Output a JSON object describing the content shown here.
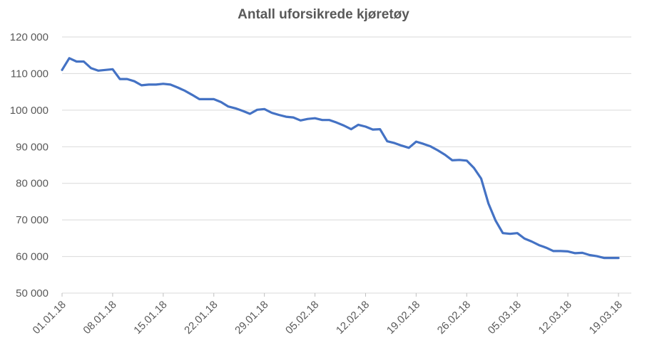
{
  "chart_data": {
    "type": "line",
    "title": "Antall uforsikrede kjøretøy",
    "xlabel": "",
    "ylabel": "",
    "ylim": [
      50000,
      120000
    ],
    "y_ticks": [
      50000,
      60000,
      70000,
      80000,
      90000,
      100000,
      110000,
      120000
    ],
    "y_tick_labels": [
      "50 000",
      "60 000",
      "70 000",
      "80 000",
      "90 000",
      "100 000",
      "110 000",
      "120 000"
    ],
    "x_tick_labels": [
      "01.01.18",
      "08.01.18",
      "15.01.18",
      "22.01.18",
      "29.01.18",
      "05.02.18",
      "12.02.18",
      "19.02.18",
      "26.02.18",
      "05.03.18",
      "12.03.18",
      "19.03.18"
    ],
    "x_tick_days": [
      0,
      7,
      14,
      21,
      28,
      35,
      42,
      49,
      56,
      63,
      70,
      77
    ],
    "grid": true,
    "legend": "none",
    "colors": {
      "line": "#4472c4"
    },
    "series": [
      {
        "x": [
          0,
          1,
          2,
          3,
          4,
          5,
          6,
          7,
          8,
          9,
          10,
          11,
          12,
          13,
          14,
          15,
          16,
          17,
          18,
          19,
          20,
          21,
          22,
          23,
          24,
          25,
          26,
          27,
          28,
          29,
          30,
          31,
          32,
          33,
          34,
          35,
          36,
          37,
          38,
          39,
          40,
          41,
          42,
          43,
          44,
          45,
          46,
          47,
          48,
          49,
          50,
          51,
          52,
          53,
          54,
          55,
          56,
          57,
          58,
          59,
          60,
          61,
          62,
          63,
          64,
          65,
          66,
          67,
          68,
          69,
          70,
          71,
          72,
          73,
          74,
          75,
          76,
          77
        ],
        "values": [
          111000,
          114200,
          113300,
          113300,
          111500,
          110800,
          111000,
          111200,
          108500,
          108500,
          107900,
          106800,
          107000,
          107000,
          107200,
          107000,
          106200,
          105300,
          104200,
          103000,
          103000,
          103000,
          102200,
          101000,
          100500,
          99800,
          99000,
          100100,
          100300,
          99300,
          98700,
          98200,
          98000,
          97200,
          97600,
          97800,
          97300,
          97300,
          96600,
          95800,
          94800,
          96000,
          95500,
          94700,
          94800,
          91500,
          91000,
          90300,
          89700,
          91400,
          90800,
          90100,
          89000,
          87800,
          86300,
          86400,
          86200,
          84200,
          81300,
          74500,
          69800,
          66400,
          66200,
          66400,
          64900,
          64100,
          63100,
          62400,
          61500,
          61500,
          61400,
          60900,
          61000,
          60400,
          60100,
          59600,
          59600,
          59600
        ]
      }
    ]
  }
}
